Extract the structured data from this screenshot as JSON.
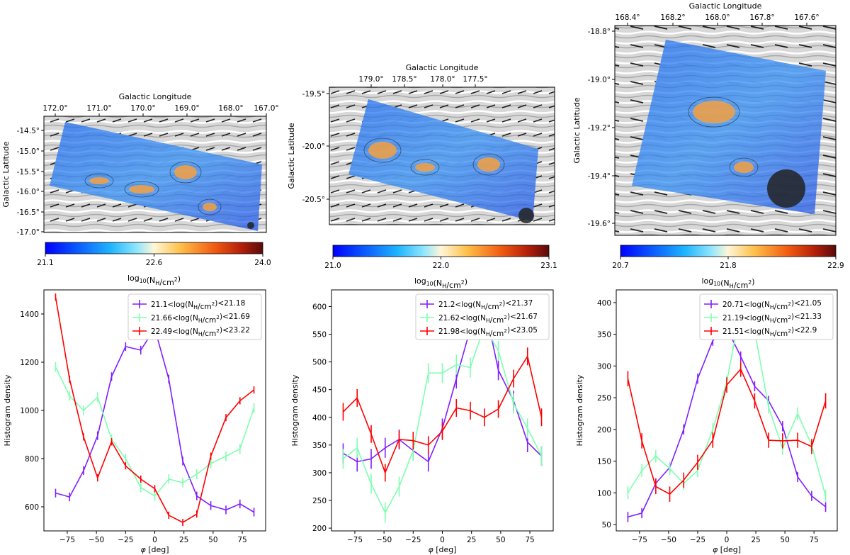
{
  "maps": [
    {
      "xlabel": "Galactic Longitude",
      "ylabel": "Galactic Latitude",
      "xticks": [
        "172.0°",
        "171.0°",
        "170.0°",
        "169.0°",
        "168.0°",
        "167.0°"
      ],
      "yticks": [
        "-14.5°",
        "-15.0°",
        "-15.5°",
        "-16.0°",
        "-16.5°",
        "-17.0°"
      ],
      "colorbar_ticks": [
        "21.1",
        "22.6",
        "24.0"
      ],
      "colorbar_label": "log₁₀(N_H/cm²)"
    },
    {
      "xlabel": "Galactic Longitude",
      "ylabel": "Galactic Latitude",
      "xticks": [
        "179.0°",
        "178.5°",
        "178.0°",
        "177.5°"
      ],
      "yticks": [
        "-19.5°",
        "-20.0°",
        "-20.5°"
      ],
      "colorbar_ticks": [
        "21.0",
        "22.0",
        "23.1"
      ],
      "colorbar_label": "log₁₀(N_H/cm²)"
    },
    {
      "xlabel": "Galactic Longitude",
      "ylabel": "Galactic Latitude",
      "xticks": [
        "168.4°",
        "168.2°",
        "168.0°",
        "167.8°",
        "167.6°"
      ],
      "yticks": [
        "-18.8°",
        "-19.0°",
        "-19.2°",
        "-19.4°",
        "-19.6°"
      ],
      "colorbar_ticks": [
        "20.7",
        "21.8",
        "22.9"
      ],
      "colorbar_label": "log₁₀(N_H/cm²)"
    }
  ],
  "chart_data": [
    {
      "type": "line",
      "xlabel": "φ [deg]",
      "ylabel": "Histogram density",
      "xlim": [
        -95,
        95
      ],
      "ylim": [
        500,
        1500
      ],
      "xticks": [
        -75,
        -50,
        -25,
        0,
        25,
        50,
        75
      ],
      "yticks": [
        600,
        800,
        1000,
        1200,
        1400
      ],
      "x": [
        -85,
        -73,
        -61,
        -49,
        -37,
        -25,
        -12,
        0,
        12,
        24,
        36,
        48,
        61,
        73,
        85
      ],
      "legend_position": "top-right",
      "series": [
        {
          "name": "21.1<log(N_H/cm²)<21.18",
          "color": "#7f1fff",
          "values": [
            657,
            641,
            750,
            895,
            1140,
            1265,
            1250,
            1340,
            1130,
            790,
            645,
            605,
            587,
            612,
            578
          ],
          "err": 18
        },
        {
          "name": "21.66<log(N_H/cm²)<21.69",
          "color": "#7fffb0",
          "values": [
            1180,
            1060,
            1000,
            1055,
            880,
            800,
            680,
            645,
            715,
            700,
            735,
            780,
            810,
            840,
            1010
          ],
          "err": 20
        },
        {
          "name": "22.49<log(N_H/cm²)<23.22",
          "color": "#ff0000",
          "values": [
            1470,
            1130,
            890,
            720,
            870,
            770,
            715,
            675,
            565,
            535,
            570,
            810,
            970,
            1040,
            1085
          ],
          "err": 15
        }
      ]
    },
    {
      "type": "line",
      "xlabel": "φ [deg]",
      "ylabel": "Histogram density",
      "xlim": [
        -95,
        95
      ],
      "ylim": [
        195,
        630
      ],
      "xticks": [
        -75,
        -50,
        -25,
        0,
        25,
        50,
        75
      ],
      "yticks": [
        200,
        250,
        300,
        350,
        400,
        450,
        500,
        550,
        600
      ],
      "x": [
        -85,
        -73,
        -61,
        -49,
        -37,
        -25,
        -12,
        0,
        12,
        24,
        36,
        48,
        61,
        73,
        85
      ],
      "legend_position": "top-right",
      "series": [
        {
          "name": "21.2<log(N_H/cm²)<21.37",
          "color": "#7f1fff",
          "values": [
            335,
            320,
            325,
            345,
            360,
            340,
            320,
            380,
            470,
            560,
            605,
            485,
            430,
            355,
            330
          ],
          "err": 18
        },
        {
          "name": "21.62<log(N_H/cm²)<21.67",
          "color": "#7fffb0",
          "values": [
            325,
            345,
            280,
            228,
            275,
            340,
            480,
            480,
            495,
            490,
            565,
            520,
            425,
            380,
            330
          ],
          "err": 18
        },
        {
          "name": "21.98<log(N_H/cm²)<23.05",
          "color": "#ff0000",
          "values": [
            410,
            435,
            370,
            300,
            360,
            358,
            350,
            375,
            417,
            412,
            400,
            415,
            470,
            510,
            400
          ],
          "err": 16
        }
      ]
    },
    {
      "type": "line",
      "xlabel": "φ [deg]",
      "ylabel": "Histogram density",
      "xlim": [
        -95,
        95
      ],
      "ylim": [
        40,
        420
      ],
      "xticks": [
        -75,
        -50,
        -25,
        0,
        25,
        50,
        75
      ],
      "yticks": [
        50,
        100,
        150,
        200,
        250,
        300,
        350,
        400
      ],
      "x": [
        -85,
        -73,
        -61,
        -49,
        -37,
        -25,
        -12,
        0,
        12,
        24,
        36,
        48,
        61,
        73,
        85
      ],
      "legend_position": "top-right",
      "series": [
        {
          "name": "20.71<log(N_H/cm²)<21.05",
          "color": "#7f1fff",
          "values": [
            62,
            68,
            115,
            140,
            200,
            280,
            340,
            360,
            315,
            268,
            245,
            205,
            125,
            95,
            78
          ],
          "err": 8
        },
        {
          "name": "21.19<log(N_H/cm²)<21.33",
          "color": "#7fffb0",
          "values": [
            100,
            135,
            158,
            138,
            115,
            135,
            200,
            275,
            390,
            355,
            235,
            170,
            225,
            175,
            95
          ],
          "err": 10
        },
        {
          "name": "21.51<log(N_H/cm²)<22.9",
          "color": "#ff0000",
          "values": [
            280,
            182,
            110,
            98,
            120,
            148,
            183,
            270,
            295,
            245,
            183,
            182,
            183,
            173,
            245
          ],
          "err": 12
        }
      ]
    }
  ]
}
